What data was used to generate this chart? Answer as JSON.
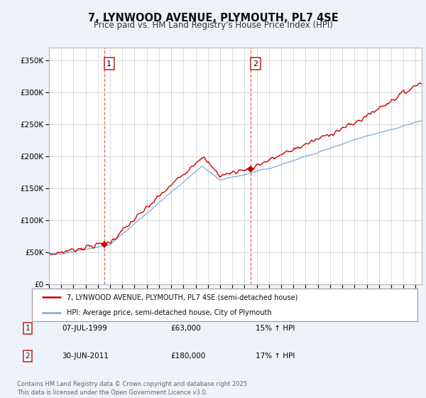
{
  "title": "7, LYNWOOD AVENUE, PLYMOUTH, PL7 4SE",
  "subtitle": "Price paid vs. HM Land Registry's House Price Index (HPI)",
  "legend_line1": "7, LYNWOOD AVENUE, PLYMOUTH, PL7 4SE (semi-detached house)",
  "legend_line2": "HPI: Average price, semi-detached house, City of Plymouth",
  "footnote": "Contains HM Land Registry data © Crown copyright and database right 2025.\nThis data is licensed under the Open Government Licence v3.0.",
  "sale1_date": "07-JUL-1999",
  "sale1_price": "£63,000",
  "sale1_hpi": "15% ↑ HPI",
  "sale2_date": "30-JUN-2011",
  "sale2_price": "£180,000",
  "sale2_hpi": "17% ↑ HPI",
  "ylim": [
    0,
    370000
  ],
  "yticks": [
    0,
    50000,
    100000,
    150000,
    200000,
    250000,
    300000,
    350000
  ],
  "background_color": "#eef2fa",
  "plot_bg_color": "#eef2fa",
  "plot_inner_bg": "#ffffff",
  "red_line_color": "#cc0000",
  "blue_line_color": "#7aacd6",
  "sale1_x": 1999.52,
  "sale1_y": 63000,
  "sale2_x": 2011.49,
  "sale2_y": 180000,
  "vline1_x": 1999.52,
  "vline2_x": 2011.49,
  "xmin": 1995.0,
  "xmax": 2025.5
}
